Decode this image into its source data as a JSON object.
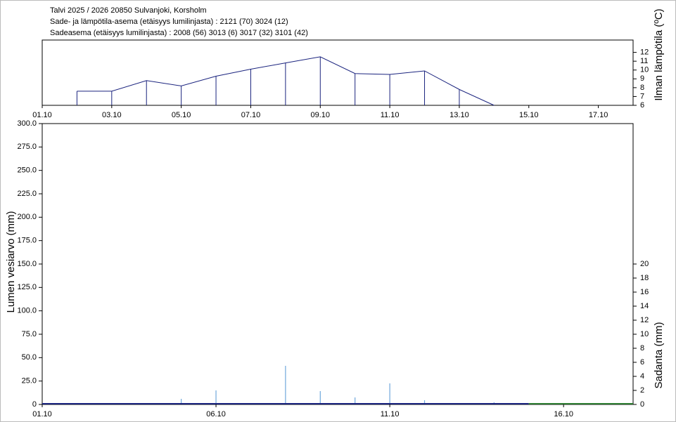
{
  "header": {
    "lines": [
      "Talvi 2025 / 2026 20850 Sulvanjoki, Korsholm",
      "Sade- ja lämpötila-asema (etäisyys lumilinjasta) :  2121 (70) 3024 (12)",
      "Sadeasema (etäisyys lumilinjasta) :  2008 (56) 3013 (6) 3017 (32) 3101 (42)"
    ]
  },
  "chart_data": [
    {
      "type": "line",
      "y_label": "Ilman lämpötila (ºC)",
      "x": [
        "02.10",
        "03.10",
        "04.10",
        "05.10",
        "06.10",
        "07.10",
        "08.10",
        "09.10",
        "10.10",
        "11.10",
        "12.10",
        "13.10",
        "14.10"
      ],
      "series": [
        {
          "color": "#1a237e",
          "values": [
            7.6,
            7.6,
            8.8,
            8.2,
            9.3,
            10.1,
            10.8,
            11.5,
            9.6,
            9.5,
            9.9,
            7.8,
            6.0
          ]
        }
      ],
      "xlim": [
        "01.10",
        "18.10"
      ],
      "xticks": [
        "01.10",
        "03.10",
        "05.10",
        "07.10",
        "09.10",
        "11.10",
        "13.10",
        "15.10",
        "17.10"
      ],
      "ylim": [
        6,
        13.4
      ],
      "yticks": [
        6,
        7,
        8,
        9,
        10,
        11,
        12
      ]
    },
    {
      "type": "combo",
      "y_label": "Lumen vesiarvo (mm)",
      "y2_label": "Sadanta (mm)",
      "series": [
        {
          "type": "bar",
          "axis": "y2",
          "color": "#6fa8dc",
          "x": [
            "05.10",
            "06.10",
            "08.10",
            "09.10",
            "10.10",
            "11.10",
            "12.10",
            "14.10"
          ],
          "values": [
            0.8,
            2.0,
            5.5,
            1.9,
            1.0,
            3.0,
            0.6,
            0.3
          ]
        },
        {
          "type": "line",
          "color": "#1a237e",
          "x": [
            "01.10",
            "15.10"
          ],
          "values": [
            0,
            0
          ]
        },
        {
          "type": "line",
          "color": "#2e7d32",
          "x": [
            "15.10",
            "18.10"
          ],
          "values": [
            0,
            0
          ]
        }
      ],
      "xlim": [
        "01.10",
        "18.10"
      ],
      "xticks": [
        "01.10",
        "06.10",
        "11.10",
        "16.10"
      ],
      "ylim": [
        0,
        300
      ],
      "yticks": [
        0,
        {
          "value": 25,
          "label": "25.0"
        },
        {
          "value": 50,
          "label": "50.0"
        },
        {
          "value": 75,
          "label": "75.0"
        },
        {
          "value": 100,
          "label": "100.0"
        },
        {
          "value": 125,
          "label": "125.0"
        },
        {
          "value": 150,
          "label": "150.0"
        },
        {
          "value": 175,
          "label": "175.0"
        },
        {
          "value": 200,
          "label": "200.0"
        },
        {
          "value": 225,
          "label": "225.0"
        },
        {
          "value": 250,
          "label": "250.0"
        },
        {
          "value": 275,
          "label": "275.0"
        },
        {
          "value": 300,
          "label": "300.0"
        }
      ],
      "y2lim": [
        0,
        40
      ],
      "y2ticks": [
        0,
        2,
        4,
        6,
        8,
        10,
        12,
        14,
        16,
        18,
        20
      ]
    }
  ]
}
